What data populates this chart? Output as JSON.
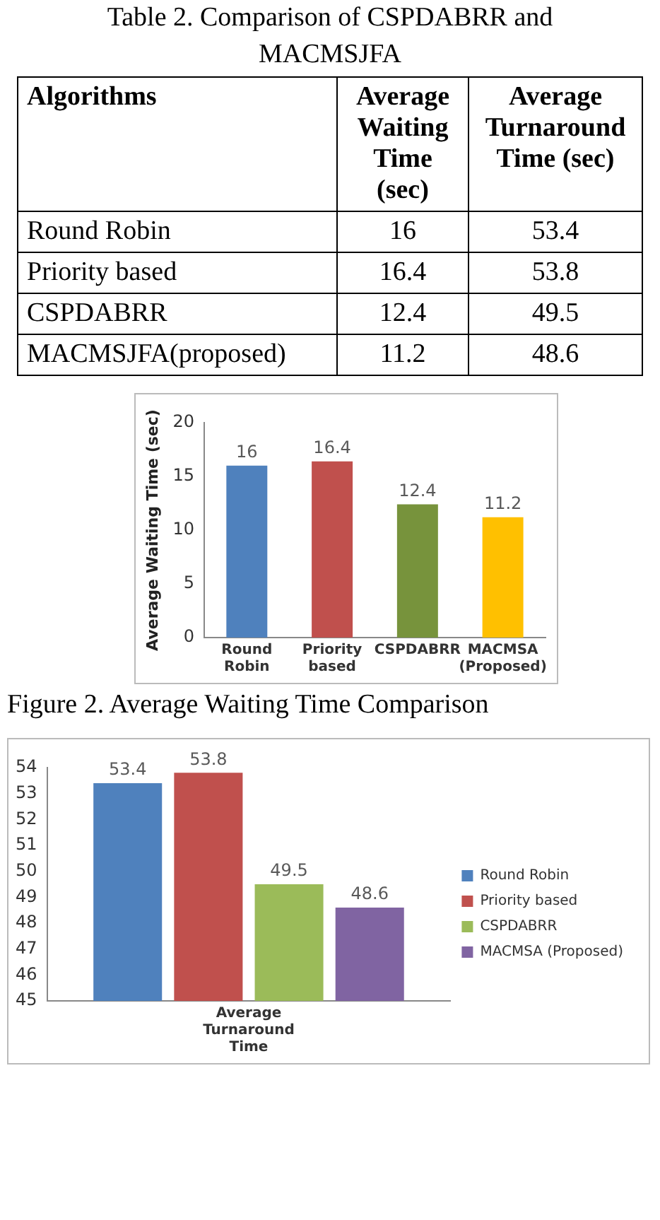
{
  "chart_data": [
    {
      "type": "other",
      "title": "Table 2.  Comparison of CSPDABRR and MACMSJFA",
      "xlabel": "Algorithms",
      "categories": [
        "Round Robin",
        "Priority based",
        "CSPDABRR",
        "MACMSJFA(proposed)"
      ],
      "data_labels": true,
      "series": [
        {
          "name": "Average Waiting Time (sec)",
          "values": [
            16,
            16.4,
            12.4,
            11.2
          ]
        },
        {
          "name": "Average Turnaround Time (sec)",
          "values": [
            53.4,
            53.8,
            49.5,
            48.6
          ]
        }
      ]
    },
    {
      "type": "bar",
      "categories": [
        "Round Robin",
        "Priority based",
        "CSPDABRR",
        "MACMSA (Proposed)"
      ],
      "values": [
        16,
        16.4,
        12.4,
        11.2
      ],
      "colors": [
        "#4f81bd",
        "#c0504d",
        "#77933c",
        "#ffc000"
      ],
      "ylabel": "Average Waiting Time (sec)",
      "ylim": [
        0,
        20
      ],
      "yticks": [
        0,
        5,
        10,
        15,
        20
      ],
      "data_labels": true,
      "annotations": [
        "Figure 2. Average Waiting Time Comparison"
      ]
    },
    {
      "type": "bar",
      "categories": [
        "Average Turnaround Time"
      ],
      "ylim": [
        45,
        54
      ],
      "yticks": [
        45,
        46,
        47,
        48,
        49,
        50,
        51,
        52,
        53,
        54
      ],
      "data_labels": true,
      "legend": "right",
      "series": [
        {
          "name": "Round Robin",
          "color": "#4f81bd",
          "values": [
            53.4
          ]
        },
        {
          "name": "Priority based",
          "color": "#c0504d",
          "values": [
            53.8
          ]
        },
        {
          "name": "CSPDABRR",
          "color": "#9bbb59",
          "values": [
            49.5
          ]
        },
        {
          "name": "MACMSA (Proposed)",
          "color": "#8064a2",
          "values": [
            48.6
          ]
        }
      ]
    }
  ]
}
